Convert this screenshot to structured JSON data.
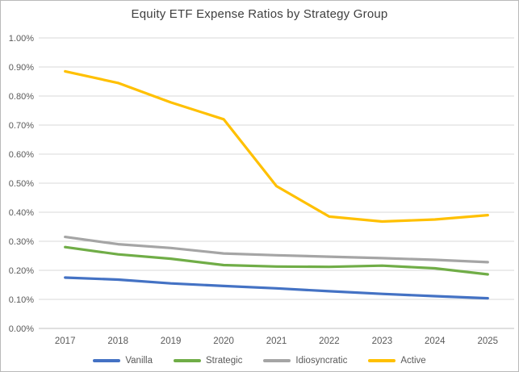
{
  "chart_data": {
    "type": "line",
    "title": "Equity ETF Expense Ratios by Strategy Group",
    "xlabel": "",
    "ylabel": "",
    "categories": [
      "2017",
      "2018",
      "2019",
      "2020",
      "2021",
      "2022",
      "2023",
      "2024",
      "2025"
    ],
    "series": [
      {
        "name": "Vanilla",
        "color": "#4472C4",
        "values": [
          0.175,
          0.168,
          0.155,
          0.146,
          0.138,
          0.128,
          0.119,
          0.111,
          0.104
        ]
      },
      {
        "name": "Strategic",
        "color": "#70AD47",
        "values": [
          0.28,
          0.255,
          0.24,
          0.218,
          0.213,
          0.212,
          0.216,
          0.207,
          0.186
        ]
      },
      {
        "name": "Idiosyncratic",
        "color": "#A5A5A5",
        "values": [
          0.315,
          0.29,
          0.277,
          0.258,
          0.252,
          0.247,
          0.242,
          0.236,
          0.228
        ]
      },
      {
        "name": "Active",
        "color": "#FFC000",
        "values": [
          0.885,
          0.845,
          0.778,
          0.72,
          0.49,
          0.385,
          0.368,
          0.375,
          0.39
        ]
      }
    ],
    "ylim": [
      0.0,
      1.0
    ],
    "ytick_step": 0.1,
    "ytick_format": "0.00%",
    "units": "percent",
    "grid": true,
    "legend_position": "bottom",
    "legend_entries": [
      "Vanilla",
      "Strategic",
      "Idiosyncratic",
      "Active"
    ],
    "colors": {
      "gridline": "#d9d9d9",
      "axis_line": "#bfbfbf",
      "tick_label": "#595959",
      "title_text": "#3f3f3f",
      "background": "#ffffff"
    }
  }
}
